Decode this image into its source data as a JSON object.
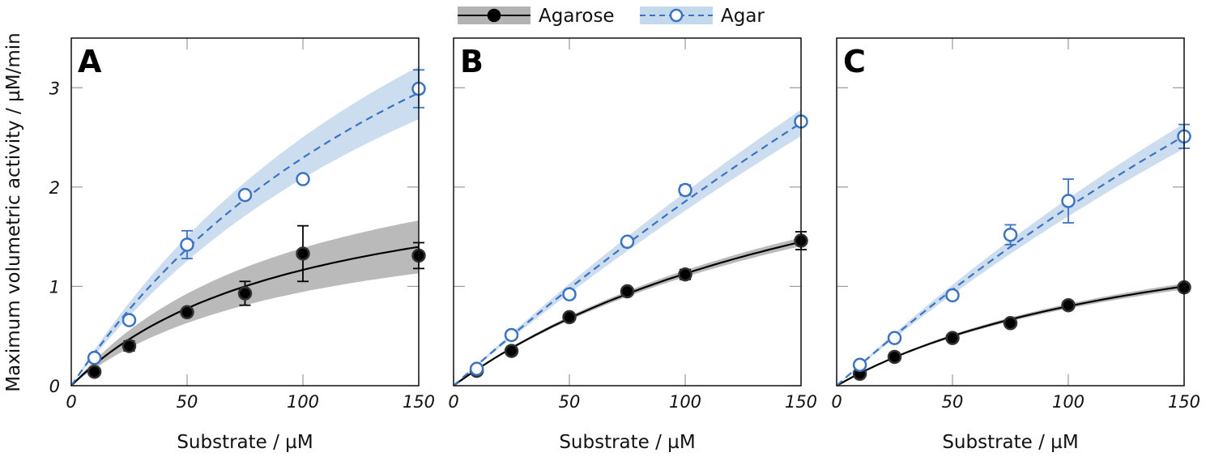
{
  "chart_data": {
    "type": "scatter",
    "legend": {
      "placement": "top-center",
      "entries": [
        {
          "name": "Agarose",
          "color": "#000000",
          "band_color": "#b3b3b3",
          "marker": "filled-circle",
          "line": "solid"
        },
        {
          "name": "Agar",
          "color": "#3b73c4",
          "band_color": "#c5d9ec",
          "marker": "open-circle",
          "line": "dashed"
        }
      ]
    },
    "ylabel": "Maximum volumetric activity / µM/min",
    "xlabel": "Substrate / µM",
    "xlim": [
      0,
      150
    ],
    "ylim": [
      0,
      3.5
    ],
    "xticks": [
      "0",
      "50",
      "100",
      "150"
    ],
    "yticks": [
      "0",
      "1",
      "2",
      "3"
    ],
    "panels": [
      {
        "label": "A",
        "series": [
          {
            "name": "Agarose",
            "x": [
              10,
              25,
              50,
              75,
              100,
              150
            ],
            "y": [
              0.14,
              0.4,
              0.74,
              0.93,
              1.33,
              1.31
            ],
            "err": [
              0,
              0.05,
              0,
              0.12,
              0.28,
              0.13
            ],
            "fit": {
              "Vmax": 2.32,
              "Km": 99
            },
            "band_rel": 0.19
          },
          {
            "name": "Agar",
            "x": [
              10,
              25,
              50,
              75,
              100,
              150
            ],
            "y": [
              0.28,
              0.66,
              1.42,
              1.92,
              2.08,
              2.99
            ],
            "err": [
              0,
              0,
              0.14,
              0,
              0,
              0.19
            ],
            "fit": {
              "Vmax": 6.84,
              "Km": 198
            },
            "band_rel": 0.09
          }
        ]
      },
      {
        "label": "B",
        "series": [
          {
            "name": "Agarose",
            "x": [
              10,
              25,
              50,
              75,
              100,
              150
            ],
            "y": [
              0.15,
              0.35,
              0.69,
              0.95,
              1.12,
              1.46
            ],
            "err": [
              0,
              0,
              0,
              0,
              0.05,
              0.09
            ],
            "fit": {
              "Vmax": 3.34,
              "Km": 196
            },
            "band_rel": 0.03
          },
          {
            "name": "Agar",
            "x": [
              10,
              25,
              50,
              75,
              100,
              150
            ],
            "y": [
              0.17,
              0.51,
              0.92,
              1.45,
              1.97,
              2.66
            ],
            "err": [
              0,
              0,
              0,
              0,
              0.05,
              0
            ],
            "fit": {
              "Vmax": 17.9,
              "Km": 865
            },
            "band_rel": 0.05
          }
        ]
      },
      {
        "label": "C",
        "series": [
          {
            "name": "Agarose",
            "x": [
              10,
              25,
              50,
              75,
              100,
              150
            ],
            "y": [
              0.12,
              0.29,
              0.48,
              0.63,
              0.81,
              0.99
            ],
            "err": [
              0,
              0,
              0,
              0,
              0,
              0
            ],
            "fit": {
              "Vmax": 2.0,
              "Km": 150
            },
            "band_rel": 0.03
          },
          {
            "name": "Agar",
            "x": [
              10,
              25,
              50,
              75,
              100,
              150
            ],
            "y": [
              0.21,
              0.48,
              0.91,
              1.52,
              1.86,
              2.51
            ],
            "err": [
              0,
              0,
              0,
              0.1,
              0.22,
              0.12
            ],
            "fit": {
              "Vmax": 12.5,
              "Km": 596
            },
            "band_rel": 0.05
          }
        ]
      }
    ]
  }
}
